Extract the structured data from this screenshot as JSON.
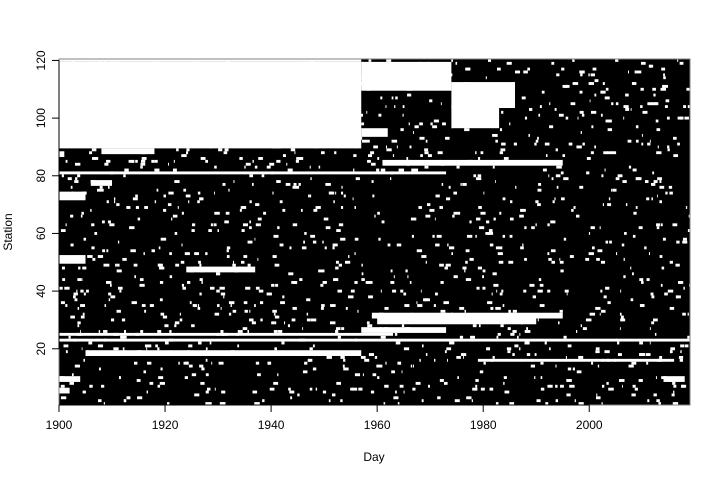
{
  "chart_data": {
    "type": "heatmap",
    "title": "",
    "xlabel": "Day",
    "ylabel": "Station",
    "xlim": [
      1900,
      2019
    ],
    "ylim": [
      0.5,
      120.5
    ],
    "x_ticks": [
      1900,
      1920,
      1940,
      1960,
      1980,
      2000
    ],
    "y_ticks": [
      20,
      40,
      60,
      80,
      100,
      120
    ],
    "x_tick_labels": [
      "1900",
      "1920",
      "1940",
      "1960",
      "1980",
      "2000"
    ],
    "y_tick_labels": [
      "20",
      "40",
      "60",
      "80",
      "100",
      "120"
    ],
    "present_color": "#000000",
    "missing_color": "#ffffff",
    "legend": "none",
    "grid": false,
    "missing_spans": [
      {
        "station_from": 120,
        "station_to": 120,
        "from": 1900,
        "to": 1957
      },
      {
        "station_from": 90,
        "station_to": 119,
        "from": 1900,
        "to": 1957
      },
      {
        "station_from": 110,
        "station_to": 119,
        "from": 1957,
        "to": 1974
      },
      {
        "station_from": 104,
        "station_to": 112,
        "from": 1974,
        "to": 1986
      },
      {
        "station_from": 97,
        "station_to": 104,
        "from": 1974,
        "to": 1983
      },
      {
        "station_from": 94,
        "station_to": 96,
        "from": 1957,
        "to": 1962
      },
      {
        "station_from": 88,
        "station_to": 89,
        "from": 1908,
        "to": 1918
      },
      {
        "station_from": 81,
        "station_to": 81,
        "from": 1900,
        "to": 1973
      },
      {
        "station_from": 84,
        "station_to": 85,
        "from": 1961,
        "to": 1995
      },
      {
        "station_from": 87,
        "station_to": 88,
        "from": 1900,
        "to": 1901
      },
      {
        "station_from": 77,
        "station_to": 78,
        "from": 1906,
        "to": 1910
      },
      {
        "station_from": 72,
        "station_to": 74,
        "from": 1900,
        "to": 1905
      },
      {
        "station_from": 50,
        "station_to": 52,
        "from": 1900,
        "to": 1905
      },
      {
        "station_from": 47,
        "station_to": 48,
        "from": 1924,
        "to": 1937
      },
      {
        "station_from": 31,
        "station_to": 32,
        "from": 1959,
        "to": 1995
      },
      {
        "station_from": 29,
        "station_to": 30,
        "from": 1960,
        "to": 1990
      },
      {
        "station_from": 26,
        "station_to": 27,
        "from": 1957,
        "to": 1973
      },
      {
        "station_from": 25,
        "station_to": 25,
        "from": 1900,
        "to": 1963
      },
      {
        "station_from": 23,
        "station_to": 23,
        "from": 1900,
        "to": 2019
      },
      {
        "station_from": 18,
        "station_to": 19,
        "from": 1905,
        "to": 1957
      },
      {
        "station_from": 16,
        "station_to": 16,
        "from": 1979,
        "to": 2016
      },
      {
        "station_from": 9,
        "station_to": 10,
        "from": 1900,
        "to": 1904
      },
      {
        "station_from": 5,
        "station_to": 6,
        "from": 1900,
        "to": 1902
      },
      {
        "station_from": 9,
        "station_to": 10,
        "from": 2014,
        "to": 2018
      }
    ]
  }
}
